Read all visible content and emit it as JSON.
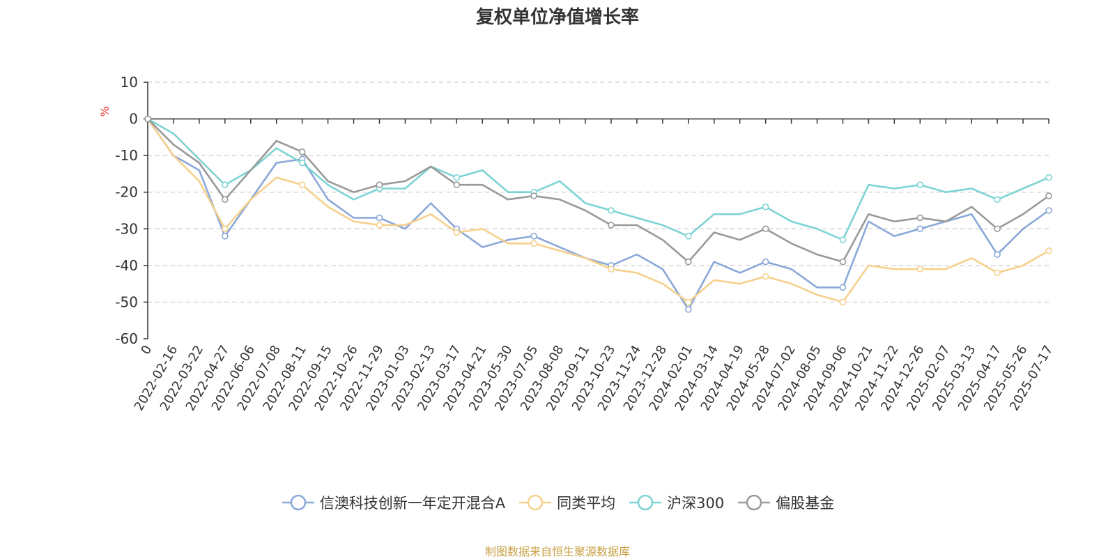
{
  "source_note": "制图数据来自恒生聚源数据库",
  "chart_data": {
    "type": "line",
    "title": "复权单位净值增长率",
    "ylabel": "%",
    "ylim": [
      -60,
      10
    ],
    "yticks": [
      10,
      0,
      -10,
      -20,
      -30,
      -40,
      -50,
      -60
    ],
    "grid": true,
    "legend_position": "bottom",
    "x_labels": [
      "0",
      "2022-02-16",
      "2022-03-22",
      "2022-04-27",
      "2022-06-06",
      "2022-07-08",
      "2022-08-11",
      "2022-09-15",
      "2022-10-26",
      "2022-11-29",
      "2023-01-03",
      "2023-02-13",
      "2023-03-17",
      "2023-04-21",
      "2023-05-30",
      "2023-07-05",
      "2023-08-08",
      "2023-09-11",
      "2023-10-23",
      "2023-11-24",
      "2023-12-28",
      "2024-02-01",
      "2024-03-14",
      "2024-04-19",
      "2024-05-28",
      "2024-07-02",
      "2024-08-05",
      "2024-09-06",
      "2024-10-21",
      "2024-11-22",
      "2024-12-26",
      "2025-02-07",
      "2025-03-13",
      "2025-04-17",
      "2025-05-26",
      "2025-07-17"
    ],
    "series": [
      {
        "name": "信澳科技创新一年定开混合A",
        "color": "#8aa8d8",
        "values": [
          0,
          -10,
          -14,
          -32,
          -22,
          -12,
          -11,
          -22,
          -27,
          -27,
          -30,
          -23,
          -30,
          -35,
          -33,
          -32,
          -35,
          -38,
          -40,
          -37,
          -41,
          -52,
          -39,
          -42,
          -39,
          -41,
          -46,
          -46,
          -28,
          -32,
          -30,
          -28,
          -26,
          -37,
          -30,
          -25
        ]
      },
      {
        "name": "同类平均",
        "color": "#f6d08c",
        "values": [
          0,
          -10,
          -17,
          -30,
          -22,
          -16,
          -18,
          -24,
          -28,
          -29,
          -29,
          -26,
          -31,
          -30,
          -34,
          -34,
          -36,
          -38,
          -41,
          -42,
          -45,
          -50,
          -44,
          -45,
          -43,
          -45,
          -48,
          -50,
          -40,
          -41,
          -41,
          -41,
          -38,
          -42,
          -40,
          -36
        ]
      },
      {
        "name": "沪深300",
        "color": "#7dd3d3",
        "values": [
          0,
          -4,
          -11,
          -18,
          -14,
          -8,
          -12,
          -18,
          -22,
          -19,
          -19,
          -13,
          -16,
          -14,
          -20,
          -20,
          -17,
          -23,
          -25,
          -27,
          -29,
          -32,
          -26,
          -26,
          -24,
          -28,
          -30,
          -33,
          -18,
          -19,
          -18,
          -20,
          -19,
          -22,
          -19,
          -16
        ]
      },
      {
        "name": "偏股基金",
        "color": "#999999",
        "values": [
          0,
          -7,
          -12,
          -22,
          -14,
          -6,
          -9,
          -17,
          -20,
          -18,
          -17,
          -13,
          -18,
          -18,
          -22,
          -21,
          -22,
          -25,
          -29,
          -29,
          -33,
          -39,
          -31,
          -33,
          -30,
          -34,
          -37,
          -39,
          -26,
          -28,
          -27,
          -28,
          -24,
          -30,
          -26,
          -21
        ]
      }
    ]
  }
}
